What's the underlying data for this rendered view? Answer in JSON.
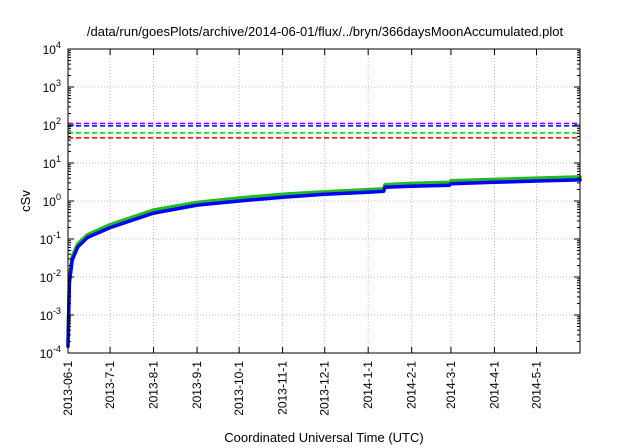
{
  "chart_data": {
    "type": "line",
    "title": "/data/run/goesPlots/archive/2014-06-01/flux/../bryn/366daysMoonAccumulated.plot",
    "xlabel": "Coordinated Universal Time (UTC)",
    "ylabel": "cSv",
    "yscale": "log",
    "ylim": [
      0.0001,
      10000
    ],
    "xlim": [
      "2013-06-01",
      "2014-06-01"
    ],
    "grid": true,
    "legend": "none",
    "x_ticks": [
      "2013-06-1",
      "2013-7-1",
      "2013-8-1",
      "2013-9-1",
      "2013-10-1",
      "2013-11-1",
      "2013-12-1",
      "2014-1-1",
      "2014-2-1",
      "2014-3-1",
      "2014-4-1",
      "2014-5-1"
    ],
    "y_ticks": [
      {
        "value": 0.0001,
        "base": "10",
        "exp": "-4"
      },
      {
        "value": 0.001,
        "base": "10",
        "exp": "-3"
      },
      {
        "value": 0.01,
        "base": "10",
        "exp": "-2"
      },
      {
        "value": 0.1,
        "base": "10",
        "exp": "-1"
      },
      {
        "value": 1,
        "base": "10",
        "exp": "0"
      },
      {
        "value": 10,
        "base": "10",
        "exp": "1"
      },
      {
        "value": 100,
        "base": "10",
        "exp": "2"
      },
      {
        "value": 1000,
        "base": "10",
        "exp": "3"
      },
      {
        "value": 10000,
        "base": "10",
        "exp": "4"
      }
    ],
    "thresholds": [
      {
        "value": 110,
        "color": "#9400d3"
      },
      {
        "value": 95,
        "color": "#0000ff"
      },
      {
        "value": 62,
        "color": "#00cc00"
      },
      {
        "value": 46,
        "color": "#ff0000"
      }
    ],
    "series": [
      {
        "color": "#22bb22",
        "x": [
          "2013-06-01",
          "2013-06-02",
          "2013-06-04",
          "2013-06-08",
          "2013-06-15",
          "2013-07-01",
          "2013-08-01",
          "2013-09-01",
          "2013-10-01",
          "2013-11-01",
          "2013-12-01",
          "2014-01-01",
          "2014-01-12",
          "2014-01-13",
          "2014-02-01",
          "2014-02-28",
          "2014-03-01",
          "2014-04-01",
          "2014-05-01",
          "2014-06-01"
        ],
        "y": [
          0.0002,
          0.009,
          0.035,
          0.075,
          0.13,
          0.24,
          0.58,
          0.92,
          1.2,
          1.5,
          1.75,
          2.0,
          2.1,
          2.7,
          2.9,
          3.1,
          3.4,
          3.7,
          4.0,
          4.3
        ]
      },
      {
        "color": "#0000ff",
        "x": [
          "2013-06-01",
          "2013-06-02",
          "2013-06-04",
          "2013-06-08",
          "2013-06-15",
          "2013-07-01",
          "2013-08-01",
          "2013-09-01",
          "2013-10-01",
          "2013-11-01",
          "2013-12-01",
          "2014-01-01",
          "2014-01-12",
          "2014-01-13",
          "2014-02-01",
          "2014-02-28",
          "2014-03-01",
          "2014-04-01",
          "2014-05-01",
          "2014-06-01"
        ],
        "y": [
          0.00015,
          0.007,
          0.028,
          0.062,
          0.11,
          0.2,
          0.48,
          0.78,
          1.0,
          1.25,
          1.5,
          1.7,
          1.8,
          2.3,
          2.45,
          2.6,
          2.85,
          3.1,
          3.35,
          3.6
        ]
      }
    ]
  }
}
